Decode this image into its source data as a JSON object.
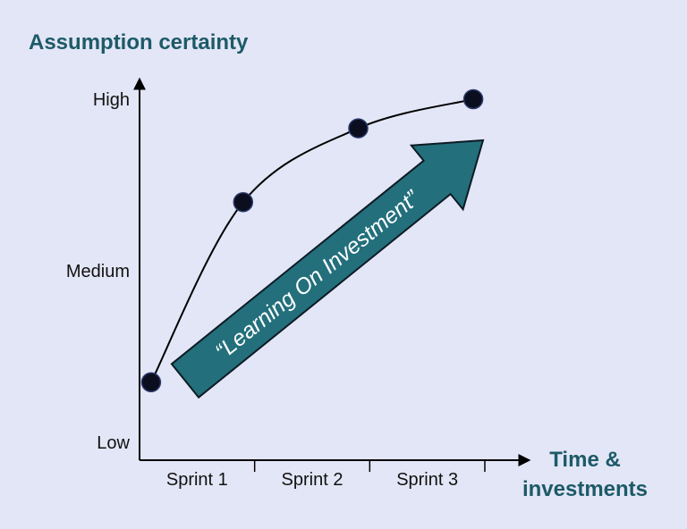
{
  "chart_data": {
    "type": "line",
    "title": "",
    "ylabel": "Assumption certainty",
    "xlabel_lines": [
      "Time &",
      "investments"
    ],
    "y_ticks": [
      "Low",
      "Medium",
      "High"
    ],
    "y_tick_values": [
      0,
      1,
      2
    ],
    "ylim": [
      0,
      2
    ],
    "x_ticks": [
      "Sprint 1",
      "Sprint 2",
      "Sprint 3"
    ],
    "x_tick_values": [
      0.5,
      1.5,
      2.5
    ],
    "xlim": [
      0,
      3
    ],
    "series": [
      {
        "x": [
          0.1,
          0.9,
          1.9,
          2.9
        ],
        "y": [
          0.35,
          1.4,
          1.83,
          2.0
        ]
      }
    ],
    "annotation": "“Learning On Investment”",
    "grid": false
  },
  "colors": {
    "background": "#e3e6f6",
    "accent": "#1d5a68",
    "arrow_fill": "#236f7c",
    "point_fill": "#0b0e1f",
    "axis": "#000000"
  }
}
